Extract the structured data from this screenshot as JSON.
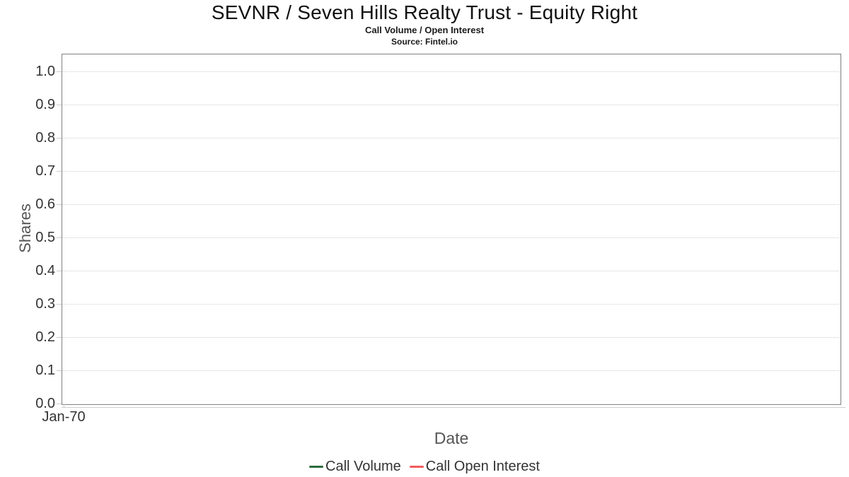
{
  "chart_data": {
    "type": "line",
    "title": "SEVNR / Seven Hills Realty Trust - Equity Right",
    "subtitle": "Call Volume / Open Interest",
    "source": "Source: Fintel.io",
    "xlabel": "Date",
    "ylabel": "Shares",
    "x_tick_labels": [
      "Jan-70"
    ],
    "y_tick_labels": [
      "0.0",
      "0.1",
      "0.2",
      "0.3",
      "0.4",
      "0.5",
      "0.6",
      "0.7",
      "0.8",
      "0.9",
      "1.0"
    ],
    "ylim": [
      0,
      1.05
    ],
    "grid": "horizontal-only",
    "legend_position": "bottom-center",
    "series": [
      {
        "name": "Call Volume",
        "color": "#2c6b3f",
        "values": []
      },
      {
        "name": "Call Open Interest",
        "color": "#f45b5b",
        "values": []
      }
    ]
  },
  "colors": {
    "background": "#ffffff",
    "plot_border": "#808080",
    "gridline": "#e6e6e6",
    "tick": "#cccccc",
    "tick_label": "#333333",
    "axis_title": "#555555",
    "title": "#111111",
    "call_volume": "#2c6b3f",
    "call_open_interest": "#f45b5b"
  }
}
